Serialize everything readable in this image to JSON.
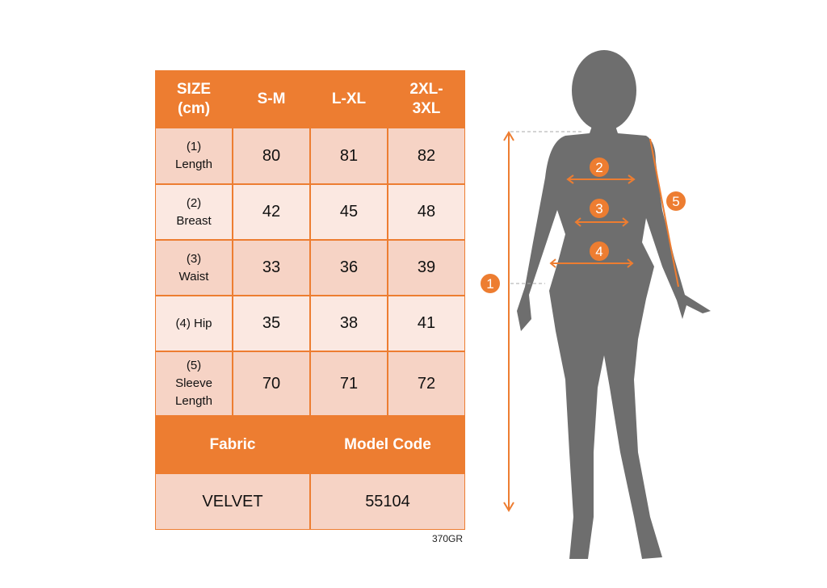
{
  "table": {
    "header": [
      "SIZE (cm)",
      "S-M",
      "L-XL",
      "2XL-3XL"
    ],
    "rows": [
      {
        "label": "(1) Length",
        "values": [
          "80",
          "81",
          "82"
        ]
      },
      {
        "label": "(2) Breast",
        "values": [
          "42",
          "45",
          "48"
        ]
      },
      {
        "label": "(3) Waist",
        "values": [
          "33",
          "36",
          "39"
        ]
      },
      {
        "label": "(4) Hip",
        "values": [
          "35",
          "38",
          "41"
        ]
      },
      {
        "label": "(5) Sleeve Length",
        "values": [
          "70",
          "71",
          "72"
        ]
      }
    ],
    "footer_headers": [
      "Fabric",
      "Model Code"
    ],
    "footer_values": [
      "VELVET",
      "55104"
    ]
  },
  "product_code": "370GR",
  "figure": {
    "markers": [
      "1",
      "2",
      "3",
      "4",
      "5"
    ]
  },
  "colors": {
    "accent": "#ED7D31",
    "row_dark": "#F6D3C5",
    "row_light": "#FBE8E1",
    "silhouette": "#6E6E6E"
  }
}
